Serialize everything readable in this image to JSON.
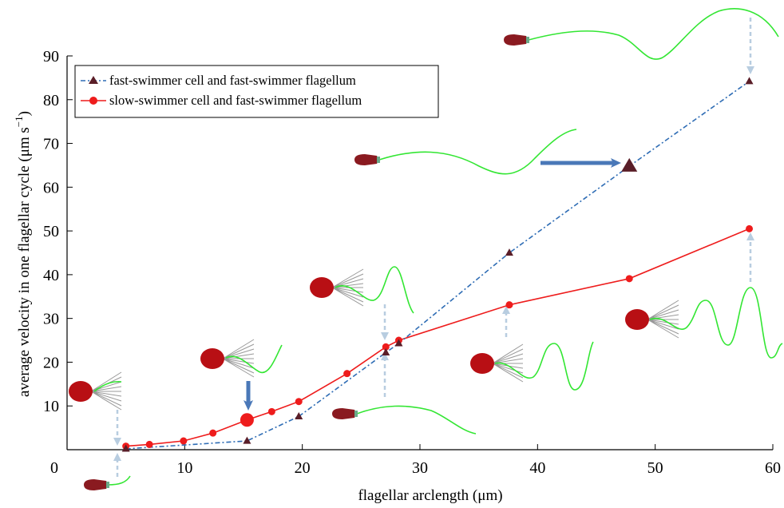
{
  "chart_data": {
    "type": "line",
    "xlabel": "flagellar arclength (μm)",
    "ylabel": "average velocity in one flagellar cycle (μm s",
    "ylabel_sup": "−1",
    "ylabel_close": ")",
    "xlim": [
      0,
      60
    ],
    "ylim": [
      0,
      90
    ],
    "x_ticks": [
      0,
      10,
      20,
      30,
      40,
      50,
      60
    ],
    "y_ticks": [
      10,
      20,
      30,
      40,
      50,
      60,
      70,
      80,
      90
    ],
    "legend_position": "top-left",
    "grid": false,
    "series": [
      {
        "name": "fast-swimmer cell and fast-swimmer flagellum",
        "color": "#2f6db5",
        "marker": "triangle",
        "marker_color": "#5a1e28",
        "line_style": "dash-dot",
        "x": [
          5.0,
          15.3,
          19.7,
          27.1,
          28.2,
          37.6,
          47.8,
          58.0
        ],
        "y": [
          0.2,
          2.0,
          7.6,
          22.2,
          24.3,
          45.0,
          64.8,
          84.2
        ]
      },
      {
        "name": "slow-swimmer cell and fast-swimmer flagellum",
        "color": "#ee1c1c",
        "marker": "circle",
        "marker_color": "#ee1c1c",
        "line_style": "solid",
        "x": [
          5.0,
          7.0,
          9.9,
          12.4,
          15.3,
          17.4,
          19.7,
          23.8,
          27.1,
          28.2,
          37.6,
          47.8,
          58.0
        ],
        "y": [
          0.8,
          1.2,
          2.0,
          3.8,
          6.8,
          8.7,
          11.0,
          17.4,
          23.5,
          25.0,
          33.1,
          39.1,
          50.5
        ]
      }
    ],
    "highlighted_points": [
      {
        "series": 0,
        "x": 47.8,
        "y": 64.8
      },
      {
        "series": 1,
        "x": 15.3,
        "y": 6.8
      }
    ],
    "illustration_colors": {
      "cell_body": "#b80f14",
      "flagellum_wave": "#33e633",
      "flagellum_fan": "#888888",
      "dashed_arrow": "#b8cde0",
      "bold_arrow": "#4a78b8"
    }
  }
}
